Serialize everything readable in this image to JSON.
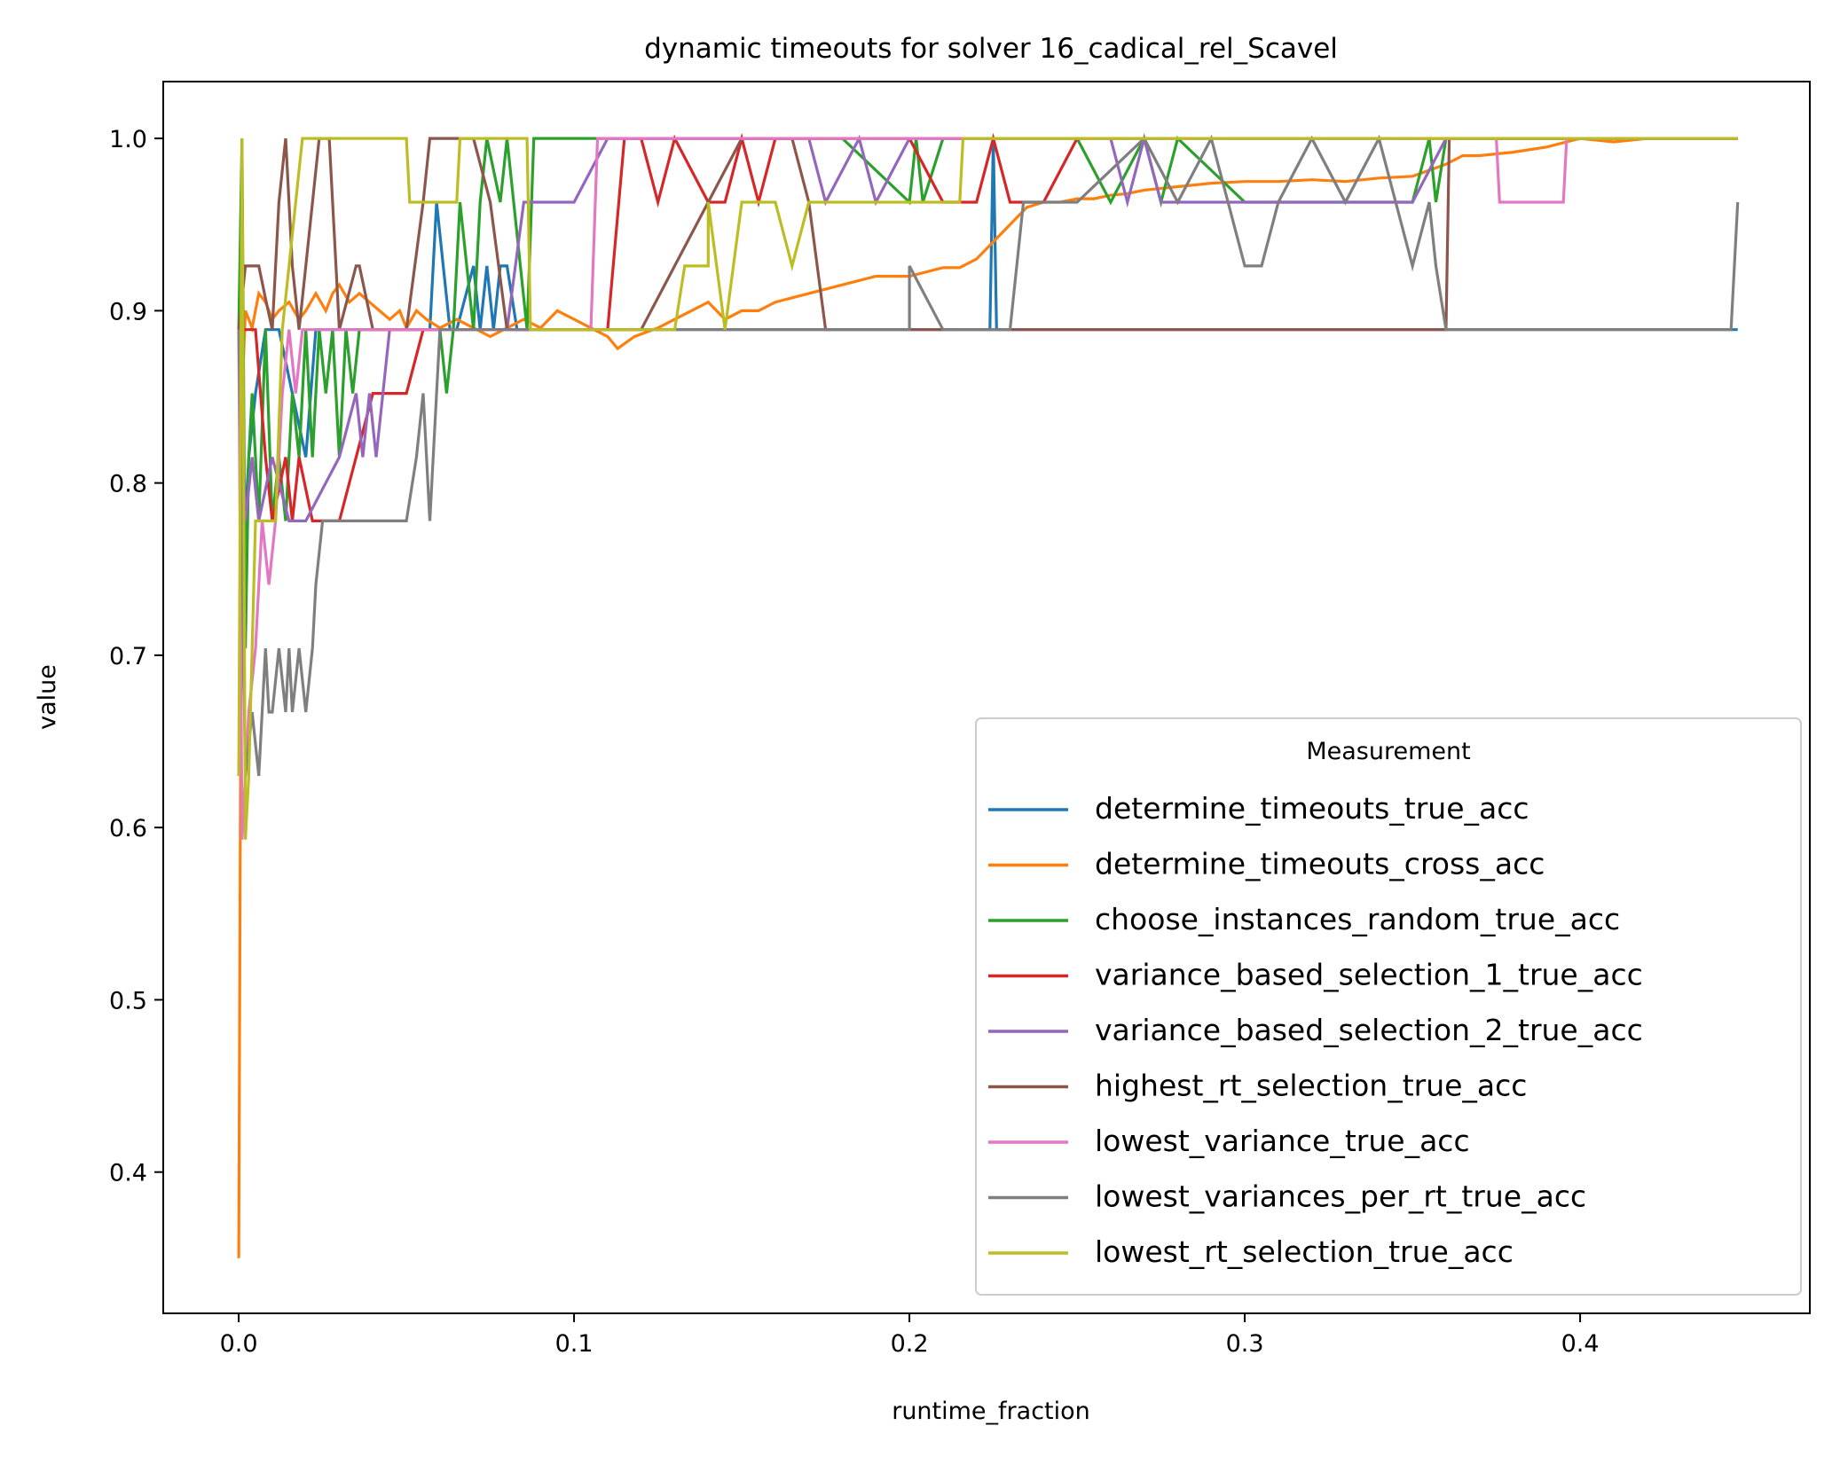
{
  "chart_data": {
    "type": "line",
    "title": "dynamic timeouts for solver 16_cadical_rel_Scavel",
    "xlabel": "runtime_fraction",
    "ylabel": "value",
    "xlim": [
      -0.0225,
      0.4685
    ],
    "ylim": [
      0.318,
      1.033
    ],
    "grid": false,
    "x_ticks": [
      0.0,
      0.1,
      0.2,
      0.3,
      0.4
    ],
    "x_tick_labels": [
      "0.0",
      "0.1",
      "0.2",
      "0.3",
      "0.4"
    ],
    "y_ticks": [
      0.4,
      0.5,
      0.6,
      0.7,
      0.8,
      0.9,
      1.0
    ],
    "y_tick_labels": [
      "0.4",
      "0.5",
      "0.6",
      "0.7",
      "0.8",
      "0.9",
      "1.0"
    ],
    "legend": {
      "title": "Measurement",
      "placement": "lower-right"
    },
    "series": [
      {
        "name": "determine_timeouts_true_acc",
        "color": "#1f77b4",
        "x": [
          0,
          0.001,
          0.002,
          0.003,
          0.005,
          0.008,
          0.012,
          0.016,
          0.02,
          0.023,
          0.03,
          0.04,
          0.05,
          0.057,
          0.059,
          0.061,
          0.063,
          0.065,
          0.07,
          0.072,
          0.074,
          0.076,
          0.078,
          0.08,
          0.083,
          0.086,
          0.1,
          0.2,
          0.224,
          0.225,
          0.226,
          0.227,
          0.3,
          0.4,
          0.447
        ],
        "y": [
          0.63,
          0.704,
          0.778,
          0.815,
          0.852,
          0.889,
          0.889,
          0.852,
          0.815,
          0.889,
          0.889,
          0.889,
          0.889,
          0.889,
          0.963,
          0.926,
          0.889,
          0.889,
          0.926,
          0.889,
          0.926,
          0.889,
          0.926,
          0.926,
          0.889,
          0.889,
          0.889,
          0.889,
          0.889,
          1.0,
          0.889,
          0.889,
          0.889,
          0.889,
          0.889
        ]
      },
      {
        "name": "determine_timeouts_cross_acc",
        "color": "#ff7f0e",
        "x": [
          0,
          0.0005,
          0.001,
          0.002,
          0.004,
          0.006,
          0.008,
          0.01,
          0.012,
          0.015,
          0.018,
          0.02,
          0.023,
          0.026,
          0.028,
          0.03,
          0.033,
          0.036,
          0.039,
          0.042,
          0.045,
          0.048,
          0.05,
          0.053,
          0.056,
          0.06,
          0.065,
          0.07,
          0.075,
          0.08,
          0.085,
          0.09,
          0.095,
          0.1,
          0.105,
          0.11,
          0.113,
          0.118,
          0.125,
          0.13,
          0.135,
          0.14,
          0.145,
          0.15,
          0.155,
          0.16,
          0.17,
          0.18,
          0.19,
          0.2,
          0.21,
          0.215,
          0.22,
          0.225,
          0.23,
          0.235,
          0.24,
          0.245,
          0.25,
          0.255,
          0.26,
          0.265,
          0.27,
          0.28,
          0.29,
          0.3,
          0.31,
          0.32,
          0.33,
          0.34,
          0.35,
          0.36,
          0.365,
          0.37,
          0.38,
          0.39,
          0.4,
          0.41,
          0.42,
          0.43,
          0.44,
          0.447
        ],
        "y": [
          0.35,
          0.6,
          0.85,
          0.9,
          0.89,
          0.91,
          0.905,
          0.895,
          0.9,
          0.905,
          0.895,
          0.9,
          0.91,
          0.9,
          0.91,
          0.915,
          0.905,
          0.91,
          0.905,
          0.9,
          0.895,
          0.9,
          0.89,
          0.9,
          0.895,
          0.89,
          0.895,
          0.89,
          0.885,
          0.89,
          0.895,
          0.89,
          0.9,
          0.895,
          0.89,
          0.885,
          0.878,
          0.885,
          0.89,
          0.895,
          0.9,
          0.905,
          0.895,
          0.9,
          0.9,
          0.905,
          0.91,
          0.915,
          0.92,
          0.92,
          0.925,
          0.925,
          0.93,
          0.94,
          0.95,
          0.96,
          0.963,
          0.963,
          0.965,
          0.965,
          0.967,
          0.968,
          0.97,
          0.972,
          0.974,
          0.975,
          0.975,
          0.976,
          0.975,
          0.977,
          0.978,
          0.985,
          0.99,
          0.99,
          0.992,
          0.995,
          1.0,
          0.998,
          1.0,
          1.0,
          1.0,
          1.0
        ]
      },
      {
        "name": "choose_instances_random_true_acc",
        "color": "#2ca02c",
        "x": [
          0,
          0.001,
          0.002,
          0.003,
          0.004,
          0.006,
          0.008,
          0.01,
          0.012,
          0.014,
          0.016,
          0.018,
          0.02,
          0.022,
          0.024,
          0.026,
          0.028,
          0.03,
          0.032,
          0.034,
          0.036,
          0.038,
          0.04,
          0.045,
          0.05,
          0.055,
          0.06,
          0.062,
          0.064,
          0.066,
          0.068,
          0.07,
          0.072,
          0.074,
          0.078,
          0.08,
          0.082,
          0.086,
          0.088,
          0.09,
          0.1,
          0.11,
          0.12,
          0.14,
          0.16,
          0.18,
          0.2,
          0.202,
          0.204,
          0.21,
          0.25,
          0.26,
          0.27,
          0.275,
          0.28,
          0.3,
          0.35,
          0.355,
          0.357,
          0.36,
          0.4,
          0.447
        ],
        "y": [
          0.889,
          1.0,
          0.704,
          0.815,
          0.852,
          0.778,
          0.889,
          0.778,
          0.815,
          0.778,
          0.852,
          0.815,
          0.889,
          0.815,
          0.889,
          0.852,
          0.889,
          0.815,
          0.889,
          0.852,
          0.889,
          0.889,
          0.889,
          0.889,
          0.889,
          0.889,
          0.889,
          0.852,
          0.889,
          0.963,
          0.926,
          0.889,
          0.963,
          1.0,
          0.963,
          1.0,
          0.963,
          0.889,
          1.0,
          1.0,
          1.0,
          1.0,
          1.0,
          1.0,
          1.0,
          1.0,
          0.963,
          1.0,
          0.963,
          1.0,
          1.0,
          0.963,
          1.0,
          0.963,
          1.0,
          0.963,
          0.963,
          1.0,
          0.963,
          1.0,
          1.0,
          1.0
        ]
      },
      {
        "name": "variance_based_selection_1_true_acc",
        "color": "#d62728",
        "x": [
          0,
          0.005,
          0.008,
          0.01,
          0.014,
          0.016,
          0.018,
          0.022,
          0.03,
          0.035,
          0.04,
          0.05,
          0.055,
          0.06,
          0.07,
          0.08,
          0.09,
          0.1,
          0.11,
          0.115,
          0.12,
          0.125,
          0.13,
          0.14,
          0.145,
          0.15,
          0.155,
          0.16,
          0.165,
          0.17,
          0.18,
          0.2,
          0.21,
          0.22,
          0.225,
          0.23,
          0.24,
          0.25,
          0.3,
          0.4,
          0.447
        ],
        "y": [
          0.889,
          0.889,
          0.815,
          0.778,
          0.815,
          0.778,
          0.815,
          0.778,
          0.778,
          0.815,
          0.852,
          0.852,
          0.889,
          0.889,
          0.889,
          0.889,
          0.889,
          0.889,
          0.889,
          1.0,
          1.0,
          0.963,
          1.0,
          0.963,
          0.963,
          1.0,
          0.963,
          1.0,
          1.0,
          1.0,
          1.0,
          1.0,
          0.963,
          0.963,
          1.0,
          0.963,
          0.963,
          1.0,
          1.0,
          1.0,
          1.0
        ]
      },
      {
        "name": "variance_based_selection_2_true_acc",
        "color": "#9467bd",
        "x": [
          0,
          0.002,
          0.004,
          0.006,
          0.01,
          0.015,
          0.02,
          0.03,
          0.035,
          0.037,
          0.039,
          0.041,
          0.043,
          0.045,
          0.05,
          0.06,
          0.07,
          0.08,
          0.085,
          0.088,
          0.09,
          0.1,
          0.11,
          0.12,
          0.15,
          0.17,
          0.175,
          0.185,
          0.19,
          0.2,
          0.26,
          0.265,
          0.27,
          0.275,
          0.3,
          0.35,
          0.36,
          0.4,
          0.447
        ],
        "y": [
          0.889,
          0.778,
          0.815,
          0.778,
          0.815,
          0.778,
          0.778,
          0.815,
          0.852,
          0.815,
          0.852,
          0.815,
          0.852,
          0.889,
          0.889,
          0.889,
          0.889,
          0.889,
          0.963,
          0.963,
          0.963,
          0.963,
          1.0,
          1.0,
          1.0,
          1.0,
          0.963,
          1.0,
          0.963,
          1.0,
          1.0,
          0.963,
          1.0,
          0.963,
          0.963,
          0.963,
          1.0,
          1.0,
          1.0
        ]
      },
      {
        "name": "highest_rt_selection_true_acc",
        "color": "#8c564b",
        "x": [
          0,
          0.002,
          0.004,
          0.006,
          0.008,
          0.01,
          0.012,
          0.014,
          0.016,
          0.018,
          0.02,
          0.024,
          0.027,
          0.03,
          0.035,
          0.036,
          0.04,
          0.045,
          0.05,
          0.055,
          0.057,
          0.06,
          0.065,
          0.07,
          0.075,
          0.08,
          0.09,
          0.1,
          0.12,
          0.15,
          0.165,
          0.17,
          0.175,
          0.2,
          0.25,
          0.3,
          0.35,
          0.36,
          0.361,
          0.4,
          0.447
        ],
        "y": [
          0.889,
          0.926,
          0.926,
          0.926,
          0.907,
          0.889,
          0.963,
          1.0,
          0.926,
          0.889,
          0.926,
          1.0,
          1.0,
          0.889,
          0.926,
          0.926,
          0.889,
          0.889,
          0.889,
          0.963,
          1.0,
          1.0,
          1.0,
          1.0,
          0.963,
          0.889,
          0.889,
          0.889,
          0.889,
          1.0,
          1.0,
          0.963,
          0.889,
          0.889,
          0.889,
          0.889,
          0.889,
          0.889,
          1.0,
          1.0,
          1.0
        ]
      },
      {
        "name": "lowest_variance_true_acc",
        "color": "#e377c2",
        "x": [
          0,
          0.001,
          0.002,
          0.003,
          0.005,
          0.007,
          0.009,
          0.011,
          0.013,
          0.015,
          0.017,
          0.019,
          0.02,
          0.05,
          0.07,
          0.09,
          0.1,
          0.105,
          0.107,
          0.11,
          0.2,
          0.3,
          0.37,
          0.375,
          0.376,
          0.395,
          0.396,
          0.4,
          0.447
        ],
        "y": [
          0.889,
          0.593,
          0.63,
          0.667,
          0.704,
          0.778,
          0.741,
          0.778,
          0.852,
          0.889,
          0.852,
          0.889,
          0.889,
          0.889,
          0.889,
          0.889,
          0.889,
          0.889,
          1.0,
          1.0,
          1.0,
          1.0,
          1.0,
          1.0,
          0.963,
          0.963,
          1.0,
          1.0,
          1.0
        ]
      },
      {
        "name": "lowest_variances_per_rt_true_acc",
        "color": "#7f7f7f",
        "x": [
          0,
          0.002,
          0.004,
          0.006,
          0.008,
          0.009,
          0.01,
          0.012,
          0.014,
          0.015,
          0.016,
          0.018,
          0.02,
          0.022,
          0.023,
          0.025,
          0.03,
          0.05,
          0.053,
          0.055,
          0.057,
          0.06,
          0.1,
          0.2,
          0.2,
          0.21,
          0.23,
          0.234,
          0.25,
          0.27,
          0.28,
          0.29,
          0.3,
          0.305,
          0.31,
          0.32,
          0.33,
          0.34,
          0.345,
          0.35,
          0.355,
          0.357,
          0.36,
          0.4,
          0.445,
          0.447
        ],
        "y": [
          0.889,
          0.63,
          0.667,
          0.63,
          0.704,
          0.667,
          0.667,
          0.704,
          0.667,
          0.704,
          0.667,
          0.704,
          0.667,
          0.704,
          0.741,
          0.778,
          0.778,
          0.778,
          0.815,
          0.852,
          0.778,
          0.889,
          0.889,
          0.889,
          0.926,
          0.889,
          0.889,
          0.963,
          0.963,
          1.0,
          0.963,
          1.0,
          0.926,
          0.926,
          0.963,
          1.0,
          0.963,
          1.0,
          0.963,
          0.926,
          0.963,
          0.926,
          0.889,
          0.889,
          0.889,
          0.963
        ]
      },
      {
        "name": "lowest_rt_selection_true_acc",
        "color": "#bcbd22",
        "x": [
          0,
          0.001,
          0.002,
          0.003,
          0.005,
          0.007,
          0.009,
          0.011,
          0.013,
          0.015,
          0.017,
          0.019,
          0.05,
          0.051,
          0.065,
          0.066,
          0.086,
          0.087,
          0.13,
          0.133,
          0.14,
          0.14,
          0.145,
          0.15,
          0.16,
          0.165,
          0.17,
          0.2,
          0.215,
          0.216,
          0.3,
          0.4,
          0.447
        ],
        "y": [
          0.63,
          1.0,
          0.593,
          0.63,
          0.778,
          0.778,
          0.778,
          0.778,
          0.889,
          0.926,
          0.963,
          1.0,
          1.0,
          0.963,
          0.963,
          1.0,
          1.0,
          0.889,
          0.889,
          0.926,
          0.926,
          0.963,
          0.889,
          0.963,
          0.963,
          0.926,
          0.963,
          0.963,
          0.963,
          1.0,
          1.0,
          1.0,
          1.0
        ]
      }
    ]
  }
}
